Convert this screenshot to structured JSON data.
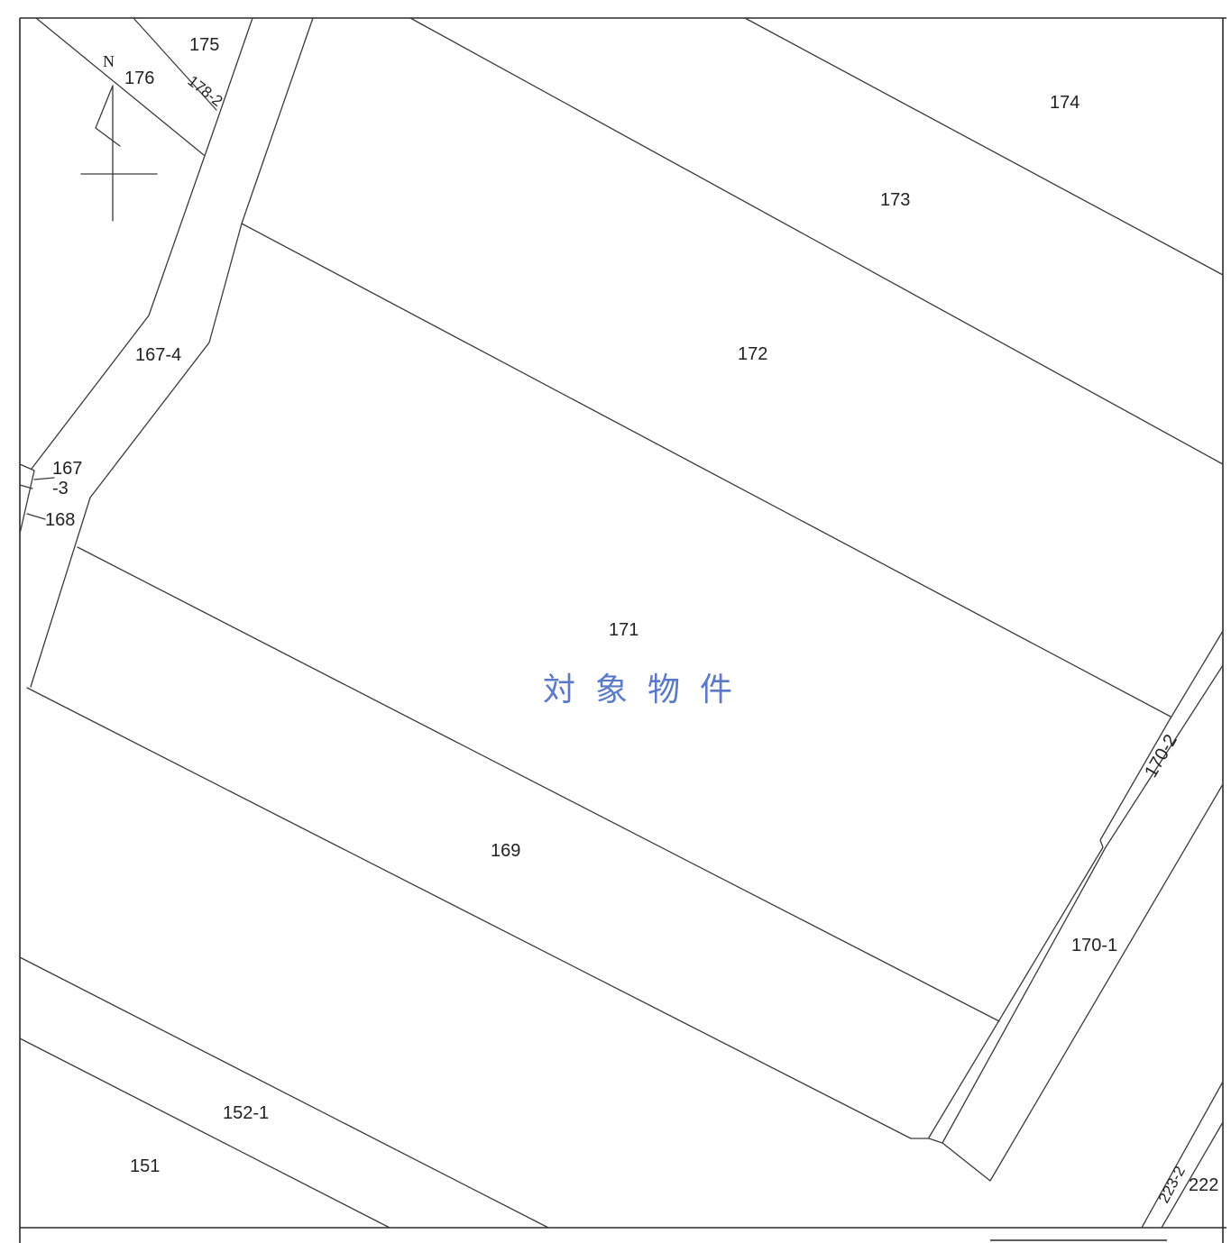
{
  "north_label": "N",
  "parcels": {
    "p175": "175",
    "p176": "176",
    "p178_2": "178-2",
    "p174": "174",
    "p173": "173",
    "p172": "172",
    "p167_4": "167-4",
    "p167_3_top": "167",
    "p167_3_bottom": "-3",
    "p168": "168",
    "p171": "171",
    "p170_2": "170-2",
    "p169": "169",
    "p170_1": "170-1",
    "p152_1": "152-1",
    "p151": "151",
    "p223_2": "223-2",
    "p222": "222"
  },
  "target_label": "対象物件",
  "colors": {
    "target": "#5a79c8",
    "line": "#3a3a3a"
  }
}
